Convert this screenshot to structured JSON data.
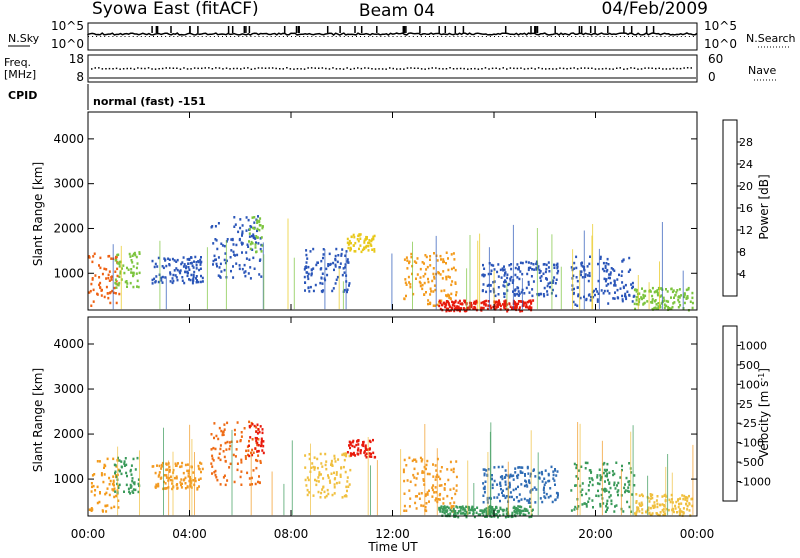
{
  "header": {
    "station": "Syowa East (fitACF)",
    "beam": "Beam 04",
    "date": "04/Feb/2009"
  },
  "noise_panel": {
    "left_label": "N.Sky",
    "right_label": "N.Search",
    "left_ticks": [
      "10^5",
      "10^0"
    ],
    "right_ticks": [
      "10^5",
      "10^0"
    ]
  },
  "freq_panel": {
    "left_label_1": "Freq.",
    "left_label_2": "[MHz]",
    "right_label": "Nave",
    "left_ticks": [
      "18",
      "8"
    ],
    "right_ticks": [
      "60",
      "0"
    ]
  },
  "cpid": {
    "label": "CPID",
    "mode": "normal (fast) -151"
  },
  "chart_data": [
    {
      "type": "heatmap",
      "name": "power",
      "ylabel": "Slant Range [km]",
      "ylim": [
        180,
        4600
      ],
      "yticks": [
        1000,
        2000,
        3000,
        4000
      ],
      "colorbar": {
        "label": "Power [dB]",
        "ticks": [
          "4",
          "8",
          "12",
          "16",
          "20",
          "24",
          "28"
        ],
        "range": [
          0,
          32
        ],
        "colors": [
          "#1530ff",
          "#2a55b8",
          "#2f8a4e",
          "#7cc43e",
          "#e8c81a",
          "#f39a1a",
          "#ee6012",
          "#e81a0c"
        ]
      }
    },
    {
      "type": "heatmap",
      "name": "velocity",
      "ylabel": "Velocity [m s^-1]",
      "yaxis_label": "Slant Range [km]",
      "ylim": [
        180,
        4600
      ],
      "yticks": [
        1000,
        2000,
        3000,
        4000
      ],
      "colorbar": {
        "label": "Velocity [m s",
        "label_sup": "-1",
        "label_end": "]",
        "ticks": [
          "1000",
          "500",
          "100",
          "25",
          "-25",
          "-100",
          "-500",
          "-1000"
        ],
        "colors": [
          "#1a3aa8",
          "#2f6cb4",
          "#3a9a5a",
          "#7cc84a",
          "#c8c8c8",
          "#f0c040",
          "#f29a22",
          "#ee6a14",
          "#e81a0c"
        ]
      }
    }
  ],
  "time_axis": {
    "xlabel": "Time UT",
    "xlim": [
      0,
      24
    ],
    "ticks": [
      "00:00",
      "04:00",
      "08:00",
      "12:00",
      "16:00",
      "20:00",
      "00:00"
    ],
    "tick_hours": [
      0,
      4,
      8,
      12,
      16,
      20,
      24
    ]
  },
  "scatter_patches": [
    {
      "t0": 0.0,
      "t1": 1.2,
      "r0": 300,
      "r1": 1500,
      "p": "#ee6012",
      "v": "#f39a1a"
    },
    {
      "t0": 1.0,
      "t1": 2.0,
      "r0": 700,
      "r1": 1500,
      "p": "#7cc43e",
      "v": "#3a9a5a"
    },
    {
      "t0": 2.5,
      "t1": 4.5,
      "r0": 800,
      "r1": 1400,
      "p": "#2a55b8",
      "v": "#f29a22"
    },
    {
      "t0": 4.8,
      "t1": 6.8,
      "r0": 900,
      "r1": 2300,
      "p": "#2a55b8",
      "v": "#ee6a14"
    },
    {
      "t0": 6.3,
      "t1": 6.9,
      "r0": 1500,
      "r1": 2300,
      "p": "#7cc43e",
      "v": "#e81a0c"
    },
    {
      "t0": 8.5,
      "t1": 10.3,
      "r0": 600,
      "r1": 1600,
      "p": "#2a55b8",
      "v": "#f0c040"
    },
    {
      "t0": 10.2,
      "t1": 11.3,
      "r0": 1500,
      "r1": 1900,
      "p": "#e8c81a",
      "v": "#e81a0c"
    },
    {
      "t0": 12.4,
      "t1": 14.5,
      "r0": 300,
      "r1": 1500,
      "p": "#f39a1a",
      "v": "#f29a22"
    },
    {
      "t0": 13.8,
      "t1": 17.5,
      "r0": 180,
      "r1": 420,
      "p": "#e81a0c",
      "v": "#3a9a5a"
    },
    {
      "t0": 15.5,
      "t1": 18.5,
      "r0": 500,
      "r1": 1300,
      "p": "#2a55b8",
      "v": "#2f6cb4"
    },
    {
      "t0": 19.0,
      "t1": 21.5,
      "r0": 300,
      "r1": 1400,
      "p": "#2a55b8",
      "v": "#3a9a5a"
    },
    {
      "t0": 21.5,
      "t1": 23.8,
      "r0": 200,
      "r1": 700,
      "p": "#7cc43e",
      "v": "#f0c040"
    }
  ]
}
